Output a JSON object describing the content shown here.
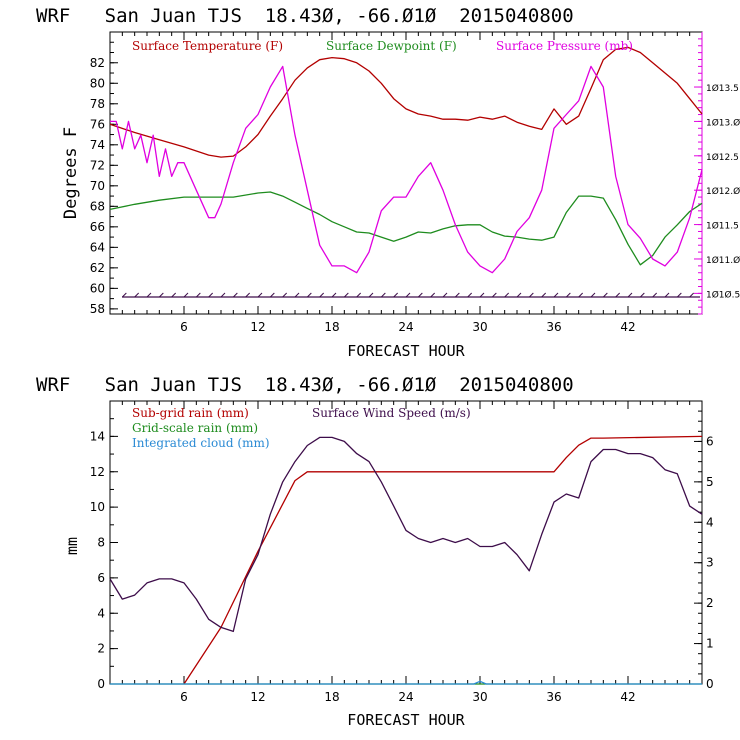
{
  "chart_data": [
    {
      "type": "line",
      "title": "WRF   San Juan TJS  18.43Ø, -66.Ø1Ø  2015040800",
      "xlabel": "FORECAST HOUR",
      "ylabel": "Degrees F",
      "xlim": [
        0,
        48
      ],
      "ylim": [
        57.5,
        85
      ],
      "y2lim": [
        1010.2,
        1014.3
      ],
      "x_ticks": [
        "6",
        "12",
        "18",
        "24",
        "30",
        "36",
        "42"
      ],
      "y_ticks": [
        "58",
        "60",
        "62",
        "64",
        "66",
        "68",
        "70",
        "72",
        "74",
        "76",
        "78",
        "80",
        "82"
      ],
      "y2_ticks": [
        "1Ø1Ø.5",
        "1Ø11.Ø",
        "1Ø11.5",
        "1Ø12.Ø",
        "1Ø12.5",
        "1Ø13.Ø",
        "1Ø13.5"
      ],
      "series": [
        {
          "name": "Surface Temperature (F)",
          "color": "#b30000",
          "axis": "left",
          "x": [
            0,
            2,
            4,
            6,
            8,
            9,
            10,
            11,
            12,
            13,
            14,
            15,
            16,
            17,
            18,
            19,
            20,
            21,
            22,
            23,
            24,
            25,
            26,
            27,
            28,
            29,
            30,
            31,
            32,
            33,
            34,
            35,
            36,
            37,
            38,
            39,
            40,
            41,
            42,
            43,
            44,
            45,
            46,
            47,
            48
          ],
          "y": [
            76,
            75.2,
            74.5,
            73.8,
            73,
            72.8,
            72.9,
            73.8,
            75,
            76.8,
            78.5,
            80.3,
            81.5,
            82.3,
            82.5,
            82.4,
            82,
            81.2,
            80,
            78.5,
            77.5,
            77,
            76.8,
            76.5,
            76.5,
            76.4,
            76.7,
            76.5,
            76.8,
            76.2,
            75.8,
            75.5,
            77.5,
            76,
            76.8,
            79.5,
            82.3,
            83.3,
            83.5,
            83,
            82,
            81,
            80,
            78.5,
            77
          ]
        },
        {
          "name": "Surface Dewpoint (F)",
          "color": "#1e8c1e",
          "axis": "left",
          "x": [
            0,
            2,
            4,
            6,
            8,
            10,
            12,
            13,
            14,
            15,
            16,
            17,
            18,
            19,
            20,
            21,
            22,
            23,
            24,
            25,
            26,
            27,
            28,
            29,
            30,
            31,
            32,
            33,
            34,
            35,
            36,
            37,
            38,
            39,
            40,
            41,
            42,
            43,
            44,
            45,
            46,
            47,
            48
          ],
          "y": [
            67.7,
            68.2,
            68.6,
            68.9,
            68.9,
            68.9,
            69.3,
            69.4,
            69,
            68.4,
            67.8,
            67.2,
            66.5,
            66,
            65.5,
            65.4,
            65,
            64.6,
            65,
            65.5,
            65.4,
            65.8,
            66.1,
            66.2,
            66.2,
            65.5,
            65.1,
            65,
            64.8,
            64.7,
            65,
            67.4,
            69,
            69,
            68.8,
            66.7,
            64.3,
            62.3,
            63.2,
            65,
            66.2,
            67.5,
            68.3
          ]
        },
        {
          "name": "Surface Pressure (mb)",
          "color": "#e000e0",
          "axis": "right",
          "x": [
            0,
            0.5,
            1,
            1.5,
            2,
            2.5,
            3,
            3.5,
            4,
            4.5,
            5,
            5.5,
            6,
            7,
            8,
            8.5,
            9,
            10,
            11,
            12,
            13,
            14,
            15,
            16,
            17,
            18,
            19,
            20,
            21,
            22,
            23,
            24,
            25,
            26,
            27,
            28,
            29,
            30,
            31,
            32,
            33,
            34,
            35,
            36,
            37,
            38,
            39,
            40,
            41,
            42,
            43,
            44,
            45,
            46,
            47,
            48
          ],
          "y": [
            1013.0,
            1013.0,
            1012.6,
            1013.0,
            1012.6,
            1012.8,
            1012.4,
            1012.8,
            1012.2,
            1012.6,
            1012.2,
            1012.4,
            1012.4,
            1012.0,
            1011.6,
            1011.6,
            1011.8,
            1012.4,
            1012.9,
            1013.1,
            1013.5,
            1013.8,
            1012.8,
            1012.0,
            1011.2,
            1010.9,
            1010.9,
            1010.8,
            1011.1,
            1011.7,
            1011.9,
            1011.9,
            1012.2,
            1012.4,
            1012.0,
            1011.5,
            1011.1,
            1010.9,
            1010.8,
            1011.0,
            1011.4,
            1011.6,
            1012.0,
            1012.9,
            1013.1,
            1013.3,
            1013.8,
            1013.5,
            1012.2,
            1011.5,
            1011.3,
            1011.0,
            1010.9,
            1011.1,
            1011.6,
            1012.3
          ]
        }
      ]
    },
    {
      "type": "line",
      "title": "WRF   San Juan TJS  18.43Ø, -66.Ø1Ø  2015040800",
      "xlabel": "FORECAST HOUR",
      "ylabel": "mm",
      "xlim": [
        0,
        48
      ],
      "ylim": [
        0,
        16
      ],
      "y2lim": [
        0,
        7
      ],
      "x_ticks": [
        "6",
        "12",
        "18",
        "24",
        "30",
        "36",
        "42"
      ],
      "y_ticks": [
        "0",
        "2",
        "4",
        "6",
        "8",
        "10",
        "12",
        "14"
      ],
      "y2_ticks": [
        "0",
        "1",
        "2",
        "3",
        "4",
        "5",
        "6"
      ],
      "series": [
        {
          "name": "Sub-grid rain (mm)",
          "color": "#b30000",
          "axis": "left",
          "x": [
            6,
            9,
            12,
            15,
            16,
            36,
            37,
            38,
            39,
            40,
            48
          ],
          "y": [
            0,
            3.2,
            7.5,
            11.5,
            12,
            12,
            12.8,
            13.5,
            13.9,
            13.9,
            14
          ]
        },
        {
          "name": "Grid-scale rain (mm)",
          "color": "#1e8c1e",
          "axis": "left",
          "x": [
            0,
            48
          ],
          "y": [
            0,
            0
          ]
        },
        {
          "name": "Integrated cloud (mm)",
          "color": "#2a8ad4",
          "axis": "left",
          "x": [
            0,
            29.5,
            30,
            30.5,
            48
          ],
          "y": [
            0,
            0,
            0.15,
            0,
            0
          ]
        },
        {
          "name": "Surface Wind Speed (m/s)",
          "color": "#3d0d4a",
          "axis": "right",
          "x": [
            0,
            1,
            2,
            3,
            4,
            5,
            6,
            7,
            8,
            9,
            10,
            11,
            12,
            13,
            14,
            15,
            16,
            17,
            18,
            19,
            20,
            21,
            22,
            23,
            24,
            25,
            26,
            27,
            28,
            29,
            30,
            31,
            32,
            33,
            34,
            35,
            36,
            37,
            38,
            39,
            40,
            41,
            42,
            43,
            44,
            45,
            46,
            47,
            48
          ],
          "y": [
            2.6,
            2.1,
            2.2,
            2.5,
            2.6,
            2.6,
            2.5,
            2.1,
            1.6,
            1.4,
            1.3,
            2.6,
            3.2,
            4.2,
            5.0,
            5.5,
            5.9,
            6.1,
            6.1,
            6.0,
            5.7,
            5.5,
            5.0,
            4.4,
            3.8,
            3.6,
            3.5,
            3.6,
            3.5,
            3.6,
            3.4,
            3.4,
            3.5,
            3.2,
            2.8,
            3.7,
            4.5,
            4.7,
            4.6,
            5.5,
            5.8,
            5.8,
            5.7,
            5.7,
            5.6,
            5.3,
            5.2,
            4.4,
            4.2
          ]
        }
      ]
    }
  ]
}
